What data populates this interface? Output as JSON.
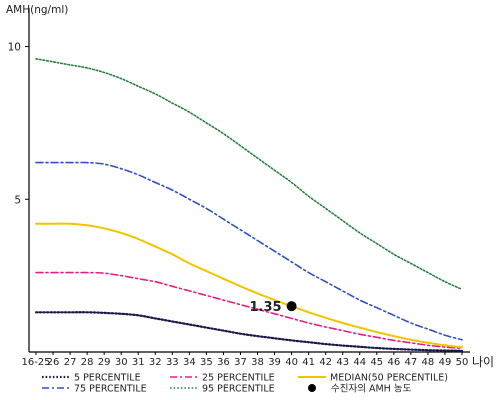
{
  "chart_data": {
    "type": "line",
    "ylabel": "AMH(ng/ml)",
    "xlabel": "나이",
    "ylim": [
      0,
      11
    ],
    "yticks": [
      5,
      10
    ],
    "categories": [
      "16-25",
      "26",
      "27",
      "28",
      "29",
      "30",
      "31",
      "32",
      "33",
      "34",
      "35",
      "36",
      "37",
      "38",
      "39",
      "40",
      "41",
      "42",
      "43",
      "44",
      "45",
      "46",
      "47",
      "48",
      "49",
      "50"
    ],
    "series": [
      {
        "name": "5 PERCENTILE",
        "color": "#1a1a4a",
        "dash": "1.6 2",
        "width": 2.2,
        "values": [
          1.3,
          1.3,
          1.3,
          1.3,
          1.28,
          1.25,
          1.2,
          1.1,
          1.0,
          0.9,
          0.8,
          0.7,
          0.6,
          0.52,
          0.45,
          0.38,
          0.32,
          0.26,
          0.21,
          0.17,
          0.13,
          0.1,
          0.08,
          0.06,
          0.05,
          0.04
        ]
      },
      {
        "name": "25 PERCENTILE",
        "color": "#e0208a",
        "dash": "7 3 2 3",
        "width": 1.6,
        "values": [
          2.6,
          2.6,
          2.6,
          2.6,
          2.58,
          2.5,
          2.4,
          2.3,
          2.15,
          2.0,
          1.85,
          1.7,
          1.55,
          1.4,
          1.25,
          1.1,
          0.95,
          0.82,
          0.7,
          0.58,
          0.48,
          0.38,
          0.3,
          0.22,
          0.16,
          0.12
        ]
      },
      {
        "name": "75 PERCENTILE",
        "color": "#3050c0",
        "dash": "7 3 2 3",
        "width": 1.6,
        "values": [
          6.2,
          6.2,
          6.2,
          6.2,
          6.15,
          6.0,
          5.8,
          5.55,
          5.3,
          5.0,
          4.7,
          4.35,
          4.0,
          3.65,
          3.3,
          2.95,
          2.6,
          2.3,
          2.0,
          1.7,
          1.45,
          1.2,
          0.95,
          0.75,
          0.55,
          0.4
        ]
      },
      {
        "name": "95 PERCENTILE",
        "color": "#2a8040",
        "dash": "1.6 2",
        "width": 1.6,
        "values": [
          9.6,
          9.5,
          9.4,
          9.3,
          9.15,
          8.95,
          8.7,
          8.45,
          8.15,
          7.85,
          7.5,
          7.15,
          6.75,
          6.35,
          5.95,
          5.55,
          5.1,
          4.7,
          4.3,
          3.9,
          3.55,
          3.2,
          2.9,
          2.6,
          2.3,
          2.05
        ]
      },
      {
        "name": "MEDIAN(50 PERCENTILE)",
        "color": "#f2c400",
        "dash": "",
        "width": 2,
        "values": [
          4.2,
          4.2,
          4.2,
          4.15,
          4.05,
          3.9,
          3.7,
          3.45,
          3.2,
          2.9,
          2.65,
          2.4,
          2.15,
          1.92,
          1.7,
          1.5,
          1.3,
          1.12,
          0.95,
          0.8,
          0.65,
          0.52,
          0.4,
          0.3,
          0.22,
          0.15
        ]
      }
    ],
    "annotation": {
      "label": "1.35",
      "x": "40",
      "y": 1.5,
      "legend": "수진자의 AMH 농도"
    },
    "legend_position": "bottom"
  }
}
